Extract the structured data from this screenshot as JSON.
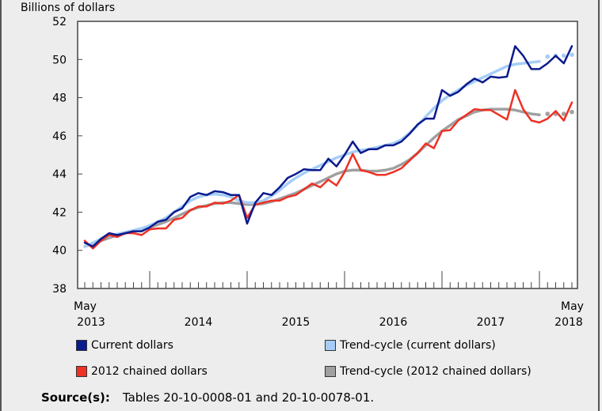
{
  "chart_data": {
    "type": "line",
    "title": "",
    "ylabel": "Billions of dollars",
    "ylim": [
      38,
      52
    ],
    "yticks": [
      38,
      40,
      42,
      44,
      46,
      48,
      50,
      52
    ],
    "x_start": "May 2013",
    "x_end": "May 2018",
    "x_tick_labels": [
      {
        "top": "May",
        "bottom": "2013"
      },
      {
        "top": "",
        "bottom": "2014"
      },
      {
        "top": "",
        "bottom": "2015"
      },
      {
        "top": "",
        "bottom": "2016"
      },
      {
        "top": "",
        "bottom": "2017"
      },
      {
        "top": "May",
        "bottom": "2018"
      }
    ],
    "grid": false,
    "legend_position": "bottom",
    "series": [
      {
        "name": "Current dollars",
        "color": "#0b1a8c",
        "values": [
          40.4,
          40.2,
          40.6,
          40.9,
          40.8,
          40.9,
          41.0,
          41.0,
          41.2,
          41.5,
          41.6,
          42.0,
          42.2,
          42.8,
          43.0,
          42.9,
          43.1,
          43.05,
          42.9,
          42.9,
          41.4,
          42.5,
          43.0,
          42.9,
          43.3,
          43.8,
          44.0,
          44.25,
          44.2,
          44.2,
          44.8,
          44.4,
          45.0,
          45.7,
          45.1,
          45.3,
          45.3,
          45.5,
          45.5,
          45.7,
          46.1,
          46.6,
          46.9,
          46.9,
          48.4,
          48.1,
          48.3,
          48.7,
          49.0,
          48.8,
          49.1,
          49.05,
          49.1,
          50.7,
          50.2,
          49.5,
          49.5,
          49.8,
          50.2,
          49.8,
          50.7
        ]
      },
      {
        "name": "Trend-cycle (current dollars)",
        "color": "#a6cdf7",
        "values": [
          40.2,
          40.4,
          40.6,
          40.75,
          40.85,
          40.95,
          41.05,
          41.15,
          41.3,
          41.5,
          41.7,
          42.0,
          42.3,
          42.6,
          42.8,
          42.9,
          42.95,
          42.9,
          42.8,
          42.6,
          42.5,
          42.5,
          42.6,
          42.85,
          43.15,
          43.5,
          43.8,
          44.05,
          44.25,
          44.45,
          44.65,
          44.85,
          45.0,
          45.15,
          45.25,
          45.3,
          45.4,
          45.5,
          45.6,
          45.8,
          46.15,
          46.55,
          47.0,
          47.45,
          47.85,
          48.15,
          48.4,
          48.65,
          48.85,
          49.05,
          49.25,
          49.45,
          49.65,
          49.75,
          49.8,
          49.85,
          49.9
        ],
        "projected": [
          50.15,
          50.2,
          50.2,
          50.25
        ]
      },
      {
        "name": "2012 chained dollars",
        "color": "#ee3124",
        "values": [
          40.5,
          40.1,
          40.5,
          40.8,
          40.7,
          40.9,
          40.9,
          40.8,
          41.1,
          41.15,
          41.15,
          41.6,
          41.7,
          42.1,
          42.3,
          42.3,
          42.5,
          42.45,
          42.6,
          42.9,
          41.7,
          42.4,
          42.5,
          42.6,
          42.6,
          42.8,
          42.9,
          43.2,
          43.5,
          43.3,
          43.7,
          43.4,
          44.1,
          45.05,
          44.2,
          44.1,
          43.95,
          43.95,
          44.1,
          44.3,
          44.7,
          45.1,
          45.6,
          45.35,
          46.25,
          46.3,
          46.8,
          47.1,
          47.4,
          47.35,
          47.35,
          47.1,
          46.85,
          48.4,
          47.4,
          46.8,
          46.7,
          46.9,
          47.3,
          46.8,
          47.75
        ]
      },
      {
        "name": "Trend-cycle (2012 chained dollars)",
        "color": "#a0a0a0",
        "values": [
          40.2,
          40.35,
          40.5,
          40.65,
          40.8,
          40.9,
          41.0,
          41.1,
          41.2,
          41.35,
          41.5,
          41.7,
          41.9,
          42.1,
          42.25,
          42.35,
          42.45,
          42.5,
          42.5,
          42.45,
          42.4,
          42.4,
          42.45,
          42.55,
          42.7,
          42.85,
          43.0,
          43.2,
          43.4,
          43.6,
          43.8,
          44.0,
          44.15,
          44.2,
          44.2,
          44.15,
          44.15,
          44.2,
          44.3,
          44.5,
          44.75,
          45.1,
          45.5,
          45.9,
          46.25,
          46.55,
          46.85,
          47.05,
          47.25,
          47.35,
          47.4,
          47.4,
          47.4,
          47.35,
          47.25,
          47.15,
          47.1
        ],
        "projected": [
          47.15,
          47.15,
          47.15,
          47.25
        ]
      }
    ]
  },
  "source": {
    "label": "Source(s):",
    "text": "Tables 20-10-0008-01 and 20-10-0078-01."
  }
}
